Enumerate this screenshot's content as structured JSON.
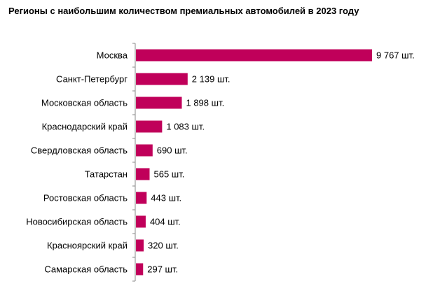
{
  "chart_data": {
    "type": "bar",
    "orientation": "horizontal",
    "title": "Регионы с наибольшим количеством премиальных автомобилей в 2023 году",
    "categories": [
      "Москва",
      "Санкт-Петербург",
      "Московская область",
      "Краснодарский край",
      "Свердловская область",
      "Татарстан",
      "Ростовская область",
      "Новосибирская область",
      "Красноярский край",
      "Самарская область"
    ],
    "values": [
      9767,
      2139,
      1898,
      1083,
      690,
      565,
      443,
      404,
      320,
      297
    ],
    "data_labels": [
      "9 767 шт.",
      "2 139 шт.",
      "1 898 шт.",
      "1 083 шт.",
      "690 шт.",
      "565 шт.",
      "443 шт.",
      "404 шт.",
      "320 шт.",
      "297 шт."
    ],
    "xlim": [
      0,
      9767
    ],
    "grid": false,
    "legend": "none",
    "color": "#c0005a"
  }
}
